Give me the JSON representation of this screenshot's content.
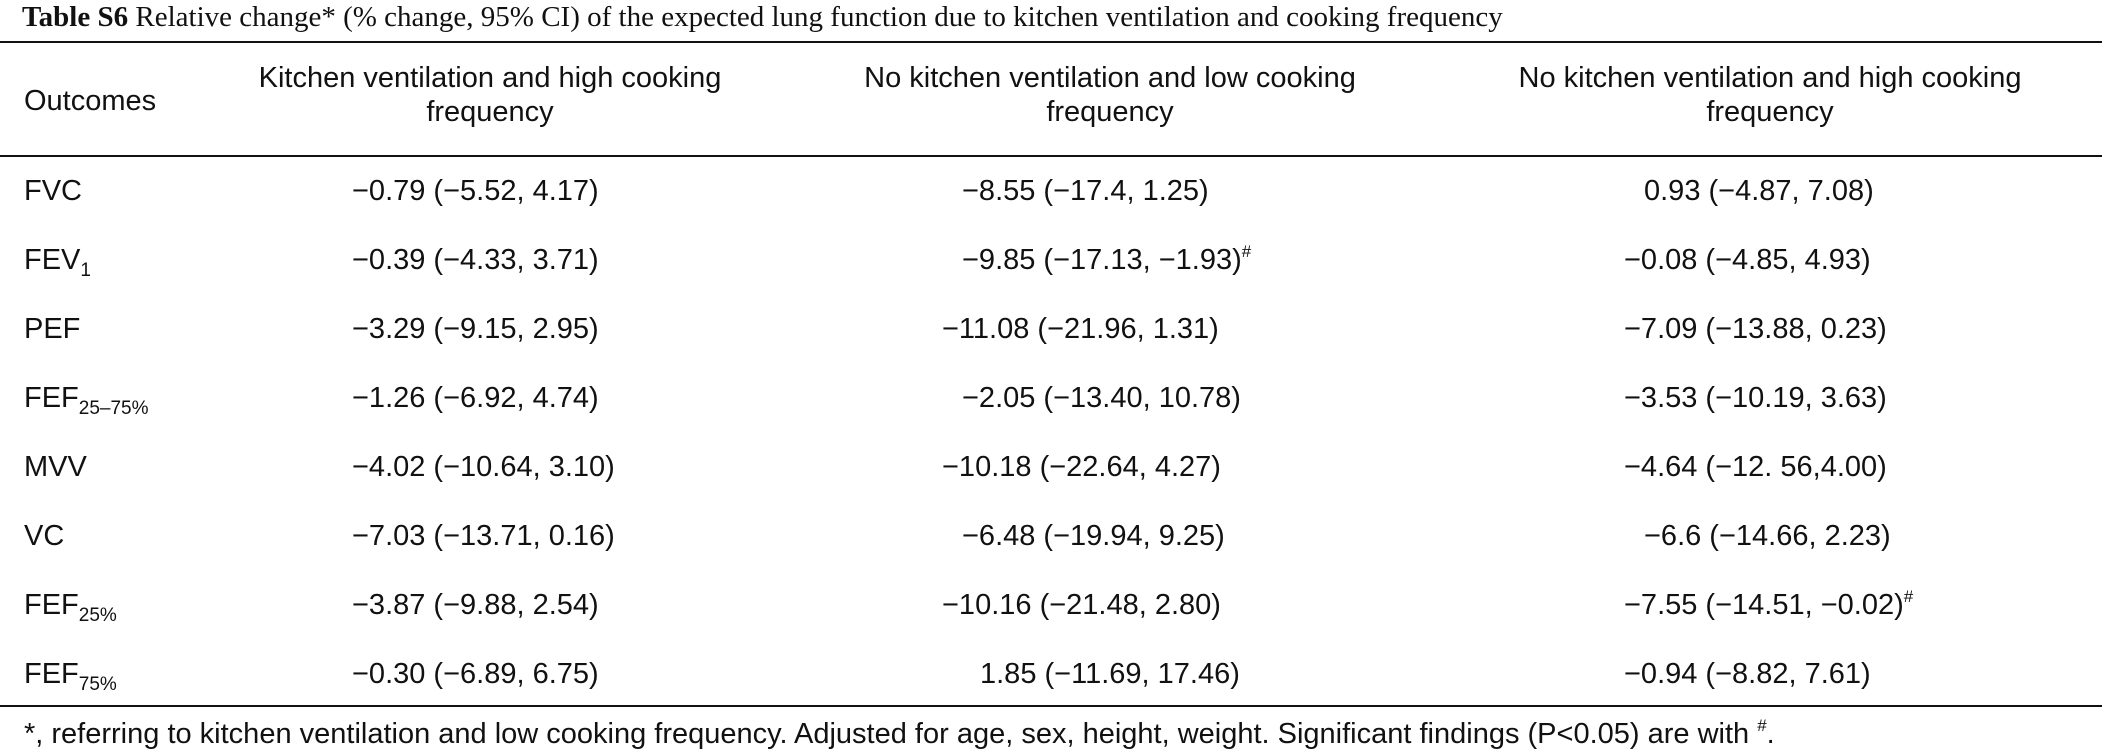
{
  "caption": {
    "label": "Table S6",
    "text": " Relative change* (% change, 95% CI) of the expected lung function due to kitchen ventilation and cooking frequency"
  },
  "headers": {
    "outcomes": "Outcomes",
    "col1_line1": "Kitchen ventilation and high cooking",
    "col1_line2": "frequency",
    "col2_line1": "No kitchen ventilation and low cooking",
    "col2_line2": "frequency",
    "col3_line1": "No kitchen ventilation and high cooking",
    "col3_line2": "frequency"
  },
  "rows": [
    {
      "outcome": "FVC",
      "sub": "",
      "c1": "−0.79 (−5.52, 4.17)",
      "c1_sig": "",
      "c2": "−8.55 (−17.4, 1.25)",
      "c2_sig": "",
      "c3": "0.93 (−4.87, 7.08)",
      "c3_sig": ""
    },
    {
      "outcome": "FEV",
      "sub": "1",
      "c1": "−0.39 (−4.33, 3.71)",
      "c1_sig": "",
      "c2": "−9.85 (−17.13, −1.93)",
      "c2_sig": "#",
      "c3": "−0.08 (−4.85, 4.93)",
      "c3_sig": ""
    },
    {
      "outcome": "PEF",
      "sub": "",
      "c1": "−3.29 (−9.15, 2.95)",
      "c1_sig": "",
      "c2": "−11.08 (−21.96, 1.31)",
      "c2_sig": "",
      "c3": "−7.09 (−13.88, 0.23)",
      "c3_sig": ""
    },
    {
      "outcome": "FEF",
      "sub": "25–75%",
      "c1": "−1.26 (−6.92, 4.74)",
      "c1_sig": "",
      "c2": "−2.05 (−13.40, 10.78)",
      "c2_sig": "",
      "c3": "−3.53 (−10.19, 3.63)",
      "c3_sig": ""
    },
    {
      "outcome": "MVV",
      "sub": "",
      "c1": "−4.02 (−10.64, 3.10)",
      "c1_sig": "",
      "c2": "−10.18 (−22.64, 4.27)",
      "c2_sig": "",
      "c3": "−4.64 (−12. 56,4.00)",
      "c3_sig": ""
    },
    {
      "outcome": "VC",
      "sub": "",
      "c1": "−7.03 (−13.71, 0.16)",
      "c1_sig": "",
      "c2": "−6.48 (−19.94, 9.25)",
      "c2_sig": "",
      "c3": "−6.6 (−14.66, 2.23)",
      "c3_sig": ""
    },
    {
      "outcome": "FEF",
      "sub": "25%",
      "c1": "−3.87 (−9.88, 2.54)",
      "c1_sig": "",
      "c2": "−10.16 (−21.48, 2.80)",
      "c2_sig": "",
      "c3": "−7.55 (−14.51, −0.02)",
      "c3_sig": "#"
    },
    {
      "outcome": "FEF",
      "sub": "75%",
      "c1": "−0.30 (−6.89, 6.75)",
      "c1_sig": "",
      "c2": "1.85 (−11.69, 17.46)",
      "c2_sig": "",
      "c3": "−0.94 (−8.82, 7.61)",
      "c3_sig": ""
    }
  ],
  "footnote": {
    "text": "*, referring to kitchen ventilation and low cooking frequency. Adjusted for age, sex, height, weight. Significant findings (P<0.05) are with ",
    "mark": "#",
    "end": "."
  }
}
